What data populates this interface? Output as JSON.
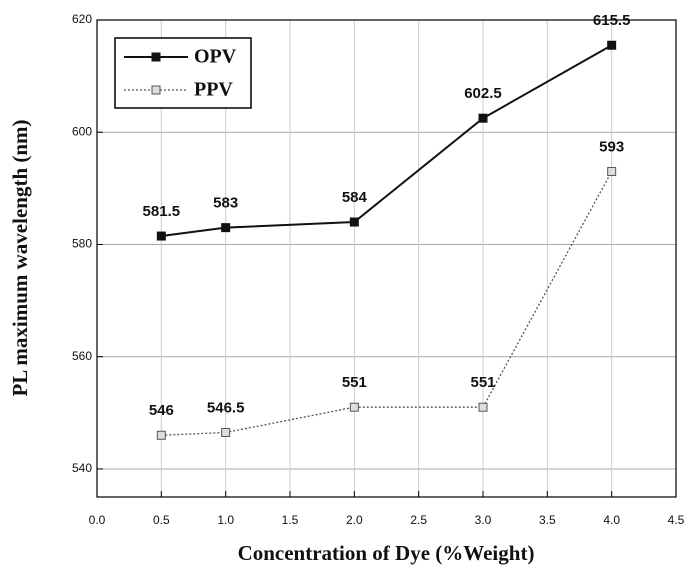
{
  "chart_data": {
    "type": "line",
    "x_label": "Concentration of Dye (%Weight)",
    "y_label": "PL maximum wavelength (nm)",
    "x": [
      0.5,
      1,
      2,
      3,
      4
    ],
    "series": [
      {
        "name": "OPV",
        "color": "#111111",
        "values": [
          581.5,
          583,
          584,
          602.5,
          615.5
        ]
      },
      {
        "name": "PPV",
        "color": "#555555",
        "values": [
          546,
          546.5,
          551,
          551,
          593
        ]
      }
    ],
    "xlim": [
      0,
      4.5
    ],
    "xticks": [
      {
        "value": 0,
        "label": "0.0"
      },
      0.5,
      {
        "value": 1,
        "label": "1.0"
      },
      1.5,
      {
        "value": 2,
        "label": "2.0"
      },
      2.5,
      {
        "value": 3,
        "label": "3.0"
      },
      3.5,
      {
        "value": 4,
        "label": "4.0"
      },
      4.5
    ],
    "ylim": [
      535,
      620
    ],
    "yticks": [
      540,
      560,
      580,
      600,
      620
    ],
    "grid": true,
    "legend": "upper left"
  }
}
